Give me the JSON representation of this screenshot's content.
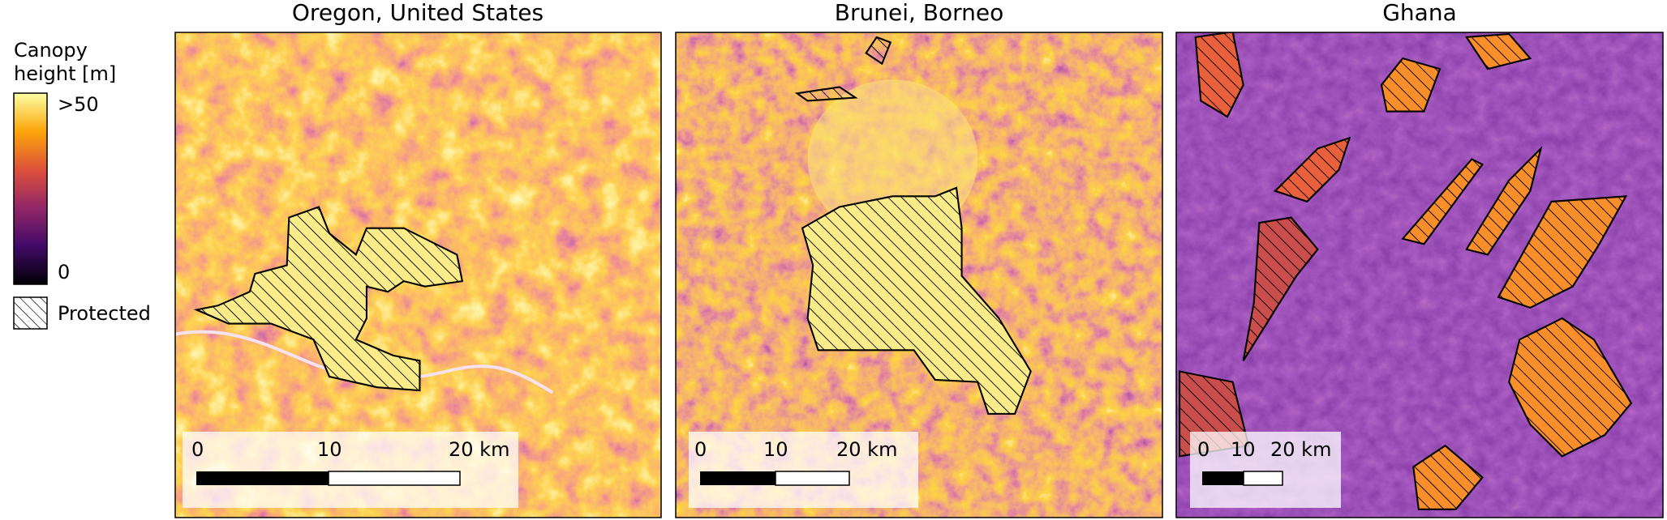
{
  "legend": {
    "title_lines": [
      "Canopy",
      "height [m]"
    ],
    "max_label": ">50",
    "min_label": "0",
    "protected_label": "Protected"
  },
  "panels": [
    {
      "title": "Oregon, United States",
      "scale_labels": [
        "0",
        "10",
        "20 km"
      ]
    },
    {
      "title": "Brunei, Borneo",
      "scale_labels": [
        "0",
        "10",
        "20 km"
      ]
    },
    {
      "title": "Ghana",
      "scale_labels": [
        "0",
        "10",
        "20 km"
      ]
    }
  ]
}
